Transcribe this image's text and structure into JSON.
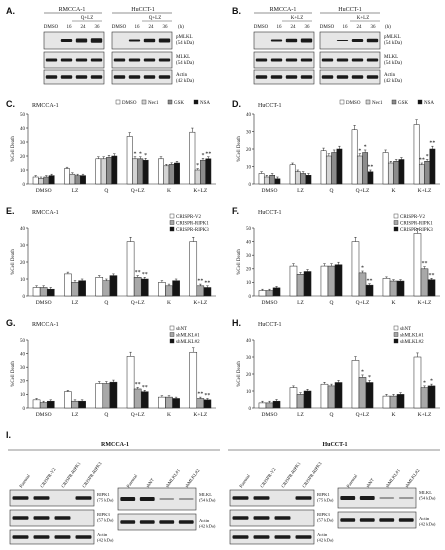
{
  "panels": {
    "A": {
      "letter": "A.",
      "cells": [
        "RMCCA-1",
        "HuCCT-1"
      ],
      "treatment": "Q+LZ",
      "lanes": [
        "DMSO",
        "16",
        "24",
        "36"
      ],
      "time_unit": "(h)",
      "blots": [
        "pMLKL\n(54 kDa)",
        "MLKL\n(54 kDa)",
        "Actin\n(42 kDa)"
      ]
    },
    "B": {
      "letter": "B.",
      "cells": [
        "RMCCA-1",
        "HuCCT-1"
      ],
      "treatment": "K+LZ",
      "lanes": [
        "DMSO",
        "16",
        "24",
        "36"
      ],
      "time_unit": "(h)",
      "blots": [
        "pMLKL\n(54 kDa)",
        "MLKL\n(54 kDa)",
        "Actin\n(42 kDa)"
      ]
    },
    "C": {
      "letter": "C.",
      "cell": "RMCCA-1"
    },
    "D": {
      "letter": "D.",
      "cell": "HuCCT-1"
    },
    "E": {
      "letter": "E.",
      "cell": "RMCCA-1"
    },
    "F": {
      "letter": "F.",
      "cell": "HuCCT-1"
    },
    "G": {
      "letter": "G.",
      "cell": "RMCCA-1"
    },
    "H": {
      "letter": "H.",
      "cell": "HuCCT-1"
    },
    "I": {
      "letter": "I.",
      "left_cell": "RMCCA-1",
      "right_cell": "HuCCT-1",
      "crispr_lanes": [
        "Parental",
        "CRISPR-V2",
        "CRISPR-RIPK1",
        "CRISPR-RIPK3"
      ],
      "sh_lanes": [
        "Parental",
        "shNT",
        "shMLKL#1",
        "shMLKL#2"
      ],
      "crispr_blots": [
        "RIPK1\n(75 kDa)",
        "RIPK3\n(57 kDa)",
        "Actin\n(42 kDa)"
      ],
      "sh_blots": [
        "MLKL\n(54 kDa)",
        "Actin\n(42 kDa)"
      ]
    }
  },
  "chart_data": [
    {
      "panel": "C",
      "type": "bar",
      "title": "RMCCA-1",
      "ylabel": "%Cell Death",
      "categories": [
        "DMSO",
        "LZ",
        "Q",
        "Q+LZ",
        "K",
        "K+LZ"
      ],
      "ylim": [
        0,
        50
      ],
      "yticks": [
        0,
        10,
        20,
        30,
        40,
        50
      ],
      "legend_position": "top-right",
      "series": [
        {
          "name": "DMSO",
          "color": "#ffffff",
          "values": [
            5,
            11,
            18,
            34,
            18,
            37
          ]
        },
        {
          "name": "Nec1",
          "color": "#d4d4d4",
          "values": [
            4,
            7,
            18,
            18,
            13,
            10
          ]
        },
        {
          "name": "GSK",
          "color": "#8c8c8c",
          "values": [
            5,
            6,
            19,
            18,
            14,
            17
          ]
        },
        {
          "name": "NSA",
          "color": "#141414",
          "values": [
            6,
            6,
            20,
            17,
            15,
            18
          ]
        }
      ],
      "annotations": [
        "*",
        "*",
        "*",
        "*",
        "*",
        "**"
      ]
    },
    {
      "panel": "D",
      "type": "bar",
      "title": "HuCCT-1",
      "ylabel": "%Cell Death",
      "categories": [
        "DMSO",
        "LZ",
        "Q",
        "Q+LZ",
        "K",
        "K+LZ"
      ],
      "ylim": [
        0,
        40
      ],
      "yticks": [
        0,
        10,
        20,
        30,
        40
      ],
      "legend_position": "top-right",
      "series": [
        {
          "name": "DMSO",
          "color": "#ffffff",
          "values": [
            6,
            11,
            19,
            31,
            18,
            34
          ]
        },
        {
          "name": "Nec1",
          "color": "#d4d4d4",
          "values": [
            4,
            7,
            16,
            16,
            12,
            11
          ]
        },
        {
          "name": "GSK",
          "color": "#8c8c8c",
          "values": [
            5,
            6,
            18,
            18,
            13,
            13
          ]
        },
        {
          "name": "NSA",
          "color": "#141414",
          "values": [
            3,
            5,
            20,
            7,
            14,
            20
          ]
        }
      ],
      "annotations": [
        "*",
        "*",
        "**",
        "**",
        "*",
        "**"
      ]
    },
    {
      "panel": "E",
      "type": "bar",
      "title": "RMCCA-1",
      "ylabel": "%Cell Death",
      "categories": [
        "DMSO",
        "LZ",
        "Q",
        "Q+LZ",
        "K",
        "K+LZ"
      ],
      "ylim": [
        0,
        40
      ],
      "yticks": [
        0,
        10,
        20,
        30,
        40
      ],
      "legend_position": "top-right",
      "series": [
        {
          "name": "CRISPR-V2",
          "color": "#ffffff",
          "values": [
            5,
            13,
            11,
            32,
            8,
            32
          ]
        },
        {
          "name": "CRISPR-RIPK1",
          "color": "#a8a8a8",
          "values": [
            5,
            8,
            9,
            11,
            6,
            6
          ]
        },
        {
          "name": "CRISPR-RIPK3",
          "color": "#141414",
          "values": [
            4,
            9,
            12,
            10,
            9,
            5
          ]
        }
      ],
      "annotations": [
        "**",
        "**",
        "**",
        "**"
      ]
    },
    {
      "panel": "F",
      "type": "bar",
      "title": "HuCCT-1",
      "ylabel": "%Cell Death",
      "categories": [
        "DMSO",
        "LZ",
        "Q",
        "Q+LZ",
        "K",
        "K+LZ"
      ],
      "ylim": [
        0,
        50
      ],
      "yticks": [
        0,
        10,
        20,
        30,
        40,
        50
      ],
      "legend_position": "top-right",
      "series": [
        {
          "name": "CRISPR-V2",
          "color": "#ffffff",
          "values": [
            4,
            22,
            22,
            40,
            13,
            46
          ]
        },
        {
          "name": "CRISPR-RIPK1",
          "color": "#a8a8a8",
          "values": [
            4,
            16,
            22,
            17,
            11,
            20
          ]
        },
        {
          "name": "CRISPR-RIPK3",
          "color": "#141414",
          "values": [
            6,
            18,
            23,
            8,
            11,
            12
          ]
        }
      ],
      "annotations": [
        "*",
        "**",
        "**",
        "**"
      ]
    },
    {
      "panel": "G",
      "type": "bar",
      "title": "RMCCA-1",
      "ylabel": "%Cell Death",
      "categories": [
        "DMSO",
        "LZ",
        "Q",
        "Q+LZ",
        "K",
        "K+LZ"
      ],
      "ylim": [
        0,
        50
      ],
      "yticks": [
        0,
        10,
        20,
        30,
        40,
        50
      ],
      "legend_position": "top-right",
      "series": [
        {
          "name": "shNT",
          "color": "#ffffff",
          "values": [
            6,
            12,
            18,
            38,
            8,
            41
          ]
        },
        {
          "name": "shMLKL#1",
          "color": "#a8a8a8",
          "values": [
            4,
            5,
            18,
            14,
            8,
            7
          ]
        },
        {
          "name": "shMLKL#2",
          "color": "#141414",
          "values": [
            5,
            5,
            19,
            12,
            7,
            6
          ]
        }
      ],
      "annotations": [
        "**",
        "**",
        "**",
        "**"
      ]
    },
    {
      "panel": "H",
      "type": "bar",
      "title": "HuCCT-1",
      "ylabel": "%Cell Death",
      "categories": [
        "DMSO",
        "LZ",
        "Q",
        "Q+LZ",
        "K",
        "K+LZ"
      ],
      "ylim": [
        0,
        40
      ],
      "yticks": [
        0,
        10,
        20,
        30,
        40
      ],
      "legend_position": "top-right",
      "series": [
        {
          "name": "shNT",
          "color": "#ffffff",
          "values": [
            3,
            12,
            14,
            28,
            7,
            30
          ]
        },
        {
          "name": "shMLKL#1",
          "color": "#a8a8a8",
          "values": [
            3,
            8,
            13,
            18,
            7,
            12
          ]
        },
        {
          "name": "shMLKL#2",
          "color": "#141414",
          "values": [
            4,
            10,
            15,
            15,
            8,
            13
          ]
        }
      ],
      "annotations": [
        "*",
        "*",
        "*",
        "*"
      ]
    }
  ]
}
